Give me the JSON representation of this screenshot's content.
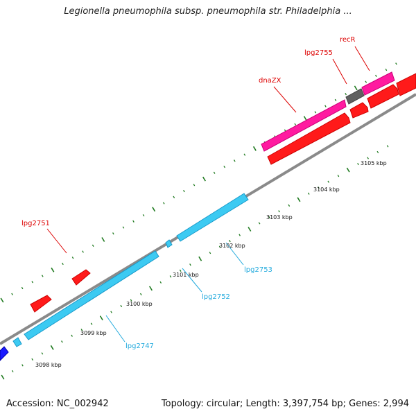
{
  "title": "Legionella pneumophila subsp. pneumophila str. Philadelphia ...",
  "footer": {
    "accession": "Accession: NC_002942",
    "topology": "Topology: circular; Length: 3,397,754 bp; Genes: 2,994"
  },
  "colors": {
    "backbone": "#8a8a8a",
    "tick": "#1f7a1f",
    "red_gene": "#ff1a1a",
    "magenta_gene": "#ff1aa0",
    "gray_gene": "#606060",
    "cyan_gene": "#3ccaf2",
    "blue_gene": "#1a1aff",
    "red_label": "#dd0000",
    "cyan_label": "#22aadd"
  },
  "scale_labels": [
    {
      "kbp": 3098,
      "text": "3098 kbp"
    },
    {
      "kbp": 3099,
      "text": "3099 kbp"
    },
    {
      "kbp": 3100,
      "text": "3100 kbp"
    },
    {
      "kbp": 3101,
      "text": "3101 kbp"
    },
    {
      "kbp": 3102,
      "text": "3102 kbp"
    },
    {
      "kbp": 3103,
      "text": "3103 kbp"
    },
    {
      "kbp": 3104,
      "text": "3104 kbp"
    },
    {
      "kbp": 3105,
      "text": "3105 kbp"
    }
  ],
  "gene_labels": [
    {
      "text": "lpg2751",
      "color": "red"
    },
    {
      "text": "dnaZX",
      "color": "red"
    },
    {
      "text": "lpg2755",
      "color": "red"
    },
    {
      "text": "recR",
      "color": "red"
    },
    {
      "text": "lpg2747",
      "color": "cyan"
    },
    {
      "text": "lpg2752",
      "color": "cyan"
    },
    {
      "text": "lpg2753",
      "color": "cyan"
    }
  ]
}
